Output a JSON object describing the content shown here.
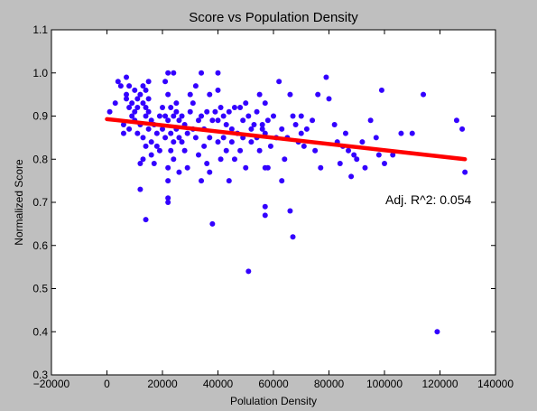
{
  "chart_data": {
    "type": "scatter",
    "title": "Score vs Population Density",
    "xlabel": "Polulation Density",
    "ylabel": "Normalized Score",
    "xlim": [
      -20000,
      140000
    ],
    "ylim": [
      0.3,
      1.1
    ],
    "xticks": [
      -20000,
      0,
      20000,
      40000,
      60000,
      80000,
      100000,
      120000,
      140000
    ],
    "yticks": [
      0.3,
      0.4,
      0.5,
      0.6,
      0.7,
      0.8,
      0.9,
      1.0,
      1.1
    ],
    "xtick_labels": [
      "−20000",
      "0",
      "20000",
      "40000",
      "60000",
      "80000",
      "100000",
      "120000",
      "140000"
    ],
    "ytick_labels": [
      "0.3",
      "0.4",
      "0.5",
      "0.6",
      "0.7",
      "0.8",
      "0.9",
      "1.0",
      "1.1"
    ],
    "grid": false,
    "annotation": "Adj. R^2: 0.054",
    "point_color": "#3300ff",
    "line_color": "#ff0000",
    "regression_line": {
      "x": [
        0,
        129000
      ],
      "y": [
        0.893,
        0.8
      ]
    },
    "points": [
      [
        1000,
        0.91
      ],
      [
        3000,
        0.93
      ],
      [
        4000,
        0.98
      ],
      [
        5000,
        0.97
      ],
      [
        6000,
        0.88
      ],
      [
        6000,
        0.86
      ],
      [
        7000,
        0.99
      ],
      [
        7000,
        0.95
      ],
      [
        7000,
        0.94
      ],
      [
        8000,
        0.97
      ],
      [
        8000,
        0.92
      ],
      [
        8000,
        0.87
      ],
      [
        9000,
        0.9
      ],
      [
        9000,
        0.93
      ],
      [
        10000,
        0.89
      ],
      [
        10000,
        0.96
      ],
      [
        10000,
        0.91
      ],
      [
        11000,
        0.86
      ],
      [
        11000,
        0.94
      ],
      [
        11000,
        0.92
      ],
      [
        12000,
        0.73
      ],
      [
        12000,
        0.79
      ],
      [
        12000,
        0.95
      ],
      [
        12000,
        0.88
      ],
      [
        13000,
        0.93
      ],
      [
        13000,
        0.97
      ],
      [
        13000,
        0.85
      ],
      [
        13000,
        0.8
      ],
      [
        14000,
        0.96
      ],
      [
        14000,
        0.92
      ],
      [
        14000,
        0.9
      ],
      [
        14000,
        0.83
      ],
      [
        14000,
        0.66
      ],
      [
        15000,
        0.87
      ],
      [
        15000,
        0.98
      ],
      [
        15000,
        0.94
      ],
      [
        15000,
        0.91
      ],
      [
        16000,
        0.84
      ],
      [
        16000,
        0.89
      ],
      [
        16000,
        0.81
      ],
      [
        17000,
        0.79
      ],
      [
        17000,
        0.88
      ],
      [
        18000,
        0.86
      ],
      [
        18000,
        0.83
      ],
      [
        19000,
        0.9
      ],
      [
        19000,
        0.82
      ],
      [
        20000,
        0.87
      ],
      [
        20000,
        0.92
      ],
      [
        21000,
        0.85
      ],
      [
        21000,
        0.98
      ],
      [
        21000,
        0.9
      ],
      [
        22000,
        0.95
      ],
      [
        22000,
        0.7
      ],
      [
        22000,
        0.75
      ],
      [
        22000,
        0.71
      ],
      [
        22000,
        0.89
      ],
      [
        22000,
        0.78
      ],
      [
        22000,
        1.0
      ],
      [
        23000,
        0.92
      ],
      [
        23000,
        0.86
      ],
      [
        23000,
        0.82
      ],
      [
        24000,
        1.0
      ],
      [
        24000,
        0.9
      ],
      [
        24000,
        0.84
      ],
      [
        24000,
        0.8
      ],
      [
        25000,
        0.93
      ],
      [
        25000,
        0.87
      ],
      [
        25000,
        0.91
      ],
      [
        26000,
        0.85
      ],
      [
        26000,
        0.77
      ],
      [
        26000,
        0.89
      ],
      [
        27000,
        0.9
      ],
      [
        27000,
        0.84
      ],
      [
        28000,
        0.88
      ],
      [
        28000,
        0.82
      ],
      [
        29000,
        0.86
      ],
      [
        29000,
        0.78
      ],
      [
        30000,
        0.95
      ],
      [
        30000,
        0.91
      ],
      [
        31000,
        0.93
      ],
      [
        31000,
        0.87
      ],
      [
        32000,
        0.97
      ],
      [
        32000,
        0.85
      ],
      [
        33000,
        0.89
      ],
      [
        33000,
        0.81
      ],
      [
        34000,
        1.0
      ],
      [
        34000,
        0.9
      ],
      [
        34000,
        0.75
      ],
      [
        35000,
        0.83
      ],
      [
        35000,
        0.87
      ],
      [
        36000,
        0.91
      ],
      [
        36000,
        0.79
      ],
      [
        37000,
        0.95
      ],
      [
        37000,
        0.85
      ],
      [
        37000,
        0.77
      ],
      [
        38000,
        0.65
      ],
      [
        38000,
        0.89
      ],
      [
        39000,
        0.91
      ],
      [
        40000,
        0.89
      ],
      [
        40000,
        1.0
      ],
      [
        40000,
        0.84
      ],
      [
        40000,
        0.96
      ],
      [
        41000,
        0.8
      ],
      [
        41000,
        0.92
      ],
      [
        42000,
        0.85
      ],
      [
        42000,
        0.9
      ],
      [
        43000,
        0.88
      ],
      [
        43000,
        0.82
      ],
      [
        44000,
        0.91
      ],
      [
        44000,
        0.75
      ],
      [
        45000,
        0.87
      ],
      [
        45000,
        0.84
      ],
      [
        46000,
        0.92
      ],
      [
        46000,
        0.8
      ],
      [
        47000,
        0.86
      ],
      [
        48000,
        0.92
      ],
      [
        48000,
        0.82
      ],
      [
        49000,
        0.89
      ],
      [
        49000,
        0.85
      ],
      [
        50000,
        0.93
      ],
      [
        50000,
        0.78
      ],
      [
        51000,
        0.54
      ],
      [
        51000,
        0.9
      ],
      [
        52000,
        0.87
      ],
      [
        52000,
        0.84
      ],
      [
        53000,
        0.88
      ],
      [
        54000,
        0.91
      ],
      [
        54000,
        0.85
      ],
      [
        55000,
        0.95
      ],
      [
        55000,
        0.82
      ],
      [
        56000,
        0.88
      ],
      [
        56000,
        0.87
      ],
      [
        57000,
        0.93
      ],
      [
        57000,
        0.86
      ],
      [
        57000,
        0.78
      ],
      [
        57000,
        0.69
      ],
      [
        57000,
        0.67
      ],
      [
        58000,
        0.78
      ],
      [
        58000,
        0.89
      ],
      [
        59000,
        0.83
      ],
      [
        60000,
        0.9
      ],
      [
        61000,
        0.85
      ],
      [
        62000,
        0.98
      ],
      [
        63000,
        0.87
      ],
      [
        63000,
        0.75
      ],
      [
        64000,
        0.8
      ],
      [
        65000,
        0.85
      ],
      [
        66000,
        0.68
      ],
      [
        66000,
        0.95
      ],
      [
        67000,
        0.62
      ],
      [
        67000,
        0.9
      ],
      [
        68000,
        0.88
      ],
      [
        69000,
        0.84
      ],
      [
        70000,
        0.9
      ],
      [
        70000,
        0.86
      ],
      [
        71000,
        0.83
      ],
      [
        72000,
        0.87
      ],
      [
        74000,
        0.89
      ],
      [
        75000,
        0.82
      ],
      [
        76000,
        0.95
      ],
      [
        77000,
        0.78
      ],
      [
        79000,
        0.99
      ],
      [
        80000,
        0.94
      ],
      [
        82000,
        0.88
      ],
      [
        83000,
        0.84
      ],
      [
        84000,
        0.79
      ],
      [
        85000,
        0.83
      ],
      [
        86000,
        0.86
      ],
      [
        87000,
        0.82
      ],
      [
        88000,
        0.76
      ],
      [
        89000,
        0.81
      ],
      [
        90000,
        0.8
      ],
      [
        92000,
        0.84
      ],
      [
        93000,
        0.78
      ],
      [
        95000,
        0.89
      ],
      [
        97000,
        0.85
      ],
      [
        98000,
        0.81
      ],
      [
        99000,
        0.96
      ],
      [
        100000,
        0.79
      ],
      [
        103000,
        0.81
      ],
      [
        106000,
        0.86
      ],
      [
        110000,
        0.86
      ],
      [
        114000,
        0.95
      ],
      [
        119000,
        0.4
      ],
      [
        126000,
        0.89
      ],
      [
        128000,
        0.87
      ],
      [
        129000,
        0.77
      ]
    ]
  }
}
